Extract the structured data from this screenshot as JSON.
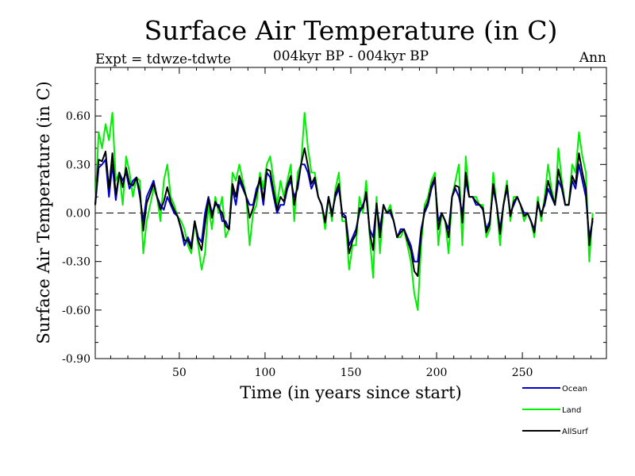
{
  "chart_data": {
    "type": "line",
    "title": "Surface Air Temperature (in C)",
    "subtitle": "004kyr BP - 004kyr BP",
    "expt_label": "Expt = tdwze-tdwte",
    "season_label": "Ann",
    "xlabel": "Time (in years since start)",
    "ylabel": "Surface Air Temperature (in C)",
    "xlim": [
      1,
      299
    ],
    "ylim": [
      -0.9,
      0.9
    ],
    "xticks": [
      50,
      100,
      150,
      200,
      250
    ],
    "xtick_labels": [
      "50",
      "100",
      "150",
      "200",
      "250"
    ],
    "yticks": [
      -0.9,
      -0.6,
      -0.3,
      0.0,
      0.3,
      0.6
    ],
    "ytick_labels": [
      "-0.90",
      "-0.60",
      "-0.30",
      "0.00",
      "0.30",
      "0.60"
    ],
    "zero_line": "dashed",
    "legend_position": "bottom-right, below plot",
    "x_start": 1,
    "x_step": 2,
    "series": [
      {
        "name": "Land",
        "color": "#00ee00",
        "values": [
          0.05,
          0.5,
          0.4,
          0.55,
          0.45,
          0.62,
          0.2,
          0.25,
          0.05,
          0.35,
          0.25,
          0.1,
          0.22,
          0.2,
          -0.25,
          -0.05,
          0.05,
          0.15,
          0.1,
          -0.05,
          0.2,
          0.3,
          0.1,
          0.05,
          -0.02,
          -0.05,
          -0.1,
          -0.2,
          -0.25,
          -0.05,
          -0.2,
          -0.35,
          -0.25,
          0.05,
          -0.1,
          0.1,
          0.0,
          0.1,
          -0.15,
          -0.1,
          0.25,
          0.2,
          0.3,
          0.2,
          0.1,
          -0.2,
          0.0,
          0.05,
          0.25,
          0.15,
          0.3,
          0.35,
          0.2,
          0.05,
          0.2,
          0.1,
          0.2,
          0.3,
          -0.05,
          0.25,
          0.3,
          0.62,
          0.4,
          0.25,
          0.25,
          0.1,
          0.05,
          -0.1,
          0.1,
          -0.05,
          0.15,
          0.25,
          -0.05,
          -0.05,
          -0.35,
          -0.2,
          -0.2,
          0.1,
          0.0,
          0.2,
          -0.15,
          -0.4,
          0.1,
          -0.25,
          0.05,
          0.0,
          0.05,
          -0.05,
          -0.15,
          -0.15,
          -0.1,
          -0.2,
          -0.3,
          -0.5,
          -0.6,
          -0.2,
          0.05,
          0.1,
          0.2,
          0.25,
          -0.2,
          0.0,
          -0.05,
          -0.25,
          0.1,
          0.2,
          0.3,
          -0.2,
          0.35,
          0.1,
          0.1,
          0.1,
          0.05,
          0.05,
          -0.15,
          -0.1,
          0.25,
          0.05,
          -0.2,
          0.05,
          0.2,
          -0.05,
          0.1,
          0.1,
          0.05,
          -0.05,
          0.0,
          -0.05,
          -0.15,
          0.1,
          -0.05,
          0.1,
          0.3,
          0.15,
          0.05,
          0.4,
          0.2,
          0.05,
          0.05,
          0.3,
          0.25,
          0.5,
          0.35,
          0.25,
          -0.3,
          0.0
        ]
      },
      {
        "name": "Ocean",
        "color": "#0000cc",
        "values": [
          0.05,
          0.28,
          0.3,
          0.33,
          0.1,
          0.3,
          0.08,
          0.25,
          0.2,
          0.25,
          0.15,
          0.2,
          0.22,
          0.1,
          -0.05,
          0.1,
          0.15,
          0.2,
          0.1,
          0.05,
          0.02,
          0.1,
          0.05,
          0.0,
          -0.02,
          -0.1,
          -0.2,
          -0.15,
          -0.2,
          -0.05,
          -0.15,
          -0.18,
          0.0,
          0.1,
          0.0,
          0.05,
          0.05,
          -0.05,
          -0.05,
          -0.1,
          0.15,
          0.05,
          0.2,
          0.15,
          0.1,
          0.05,
          0.05,
          0.15,
          0.2,
          0.05,
          0.25,
          0.22,
          0.1,
          0.0,
          0.05,
          0.05,
          0.15,
          0.2,
          0.1,
          0.15,
          0.3,
          0.3,
          0.25,
          0.15,
          0.2,
          0.1,
          0.05,
          -0.05,
          0.1,
          0.0,
          0.1,
          0.15,
          0.0,
          -0.02,
          -0.2,
          -0.15,
          -0.1,
          0.0,
          0.05,
          0.1,
          -0.1,
          -0.15,
          0.05,
          -0.1,
          0.05,
          0.0,
          0.0,
          -0.05,
          -0.15,
          -0.1,
          -0.1,
          -0.15,
          -0.2,
          -0.3,
          -0.3,
          -0.1,
          0.0,
          0.05,
          0.15,
          0.2,
          -0.05,
          0.0,
          -0.05,
          -0.1,
          0.1,
          0.15,
          0.1,
          0.0,
          0.2,
          0.1,
          0.1,
          0.05,
          0.05,
          0.02,
          -0.1,
          -0.05,
          0.15,
          0.05,
          -0.1,
          0.05,
          0.15,
          0.0,
          0.05,
          0.1,
          0.05,
          0.0,
          0.0,
          -0.05,
          -0.1,
          0.05,
          0.0,
          0.05,
          0.15,
          0.1,
          0.05,
          0.2,
          0.15,
          0.05,
          0.05,
          0.2,
          0.15,
          0.3,
          0.2,
          0.1,
          -0.15,
          -0.05
        ]
      },
      {
        "name": "AllSurf",
        "color": "#000000",
        "values": [
          0.05,
          0.33,
          0.32,
          0.38,
          0.15,
          0.37,
          0.11,
          0.25,
          0.16,
          0.28,
          0.18,
          0.17,
          0.22,
          0.13,
          -0.11,
          0.06,
          0.12,
          0.18,
          0.1,
          0.02,
          0.07,
          0.16,
          0.07,
          0.02,
          -0.02,
          -0.09,
          -0.17,
          -0.17,
          -0.22,
          -0.05,
          -0.17,
          -0.23,
          -0.07,
          0.09,
          -0.03,
          0.07,
          0.03,
          0.0,
          -0.08,
          -0.1,
          0.18,
          0.1,
          0.23,
          0.17,
          0.1,
          -0.03,
          0.03,
          0.12,
          0.22,
          0.08,
          0.27,
          0.26,
          0.13,
          0.02,
          0.1,
          0.07,
          0.17,
          0.23,
          0.05,
          0.18,
          0.3,
          0.4,
          0.29,
          0.18,
          0.22,
          0.1,
          0.05,
          -0.06,
          0.1,
          -0.02,
          0.12,
          0.18,
          -0.02,
          -0.03,
          -0.25,
          -0.17,
          -0.13,
          0.03,
          0.03,
          0.13,
          -0.12,
          -0.23,
          0.06,
          -0.15,
          0.05,
          0.0,
          0.02,
          -0.05,
          -0.15,
          -0.12,
          -0.1,
          -0.17,
          -0.23,
          -0.36,
          -0.39,
          -0.13,
          0.02,
          0.07,
          0.17,
          0.22,
          -0.1,
          0.0,
          -0.05,
          -0.15,
          0.1,
          0.17,
          0.16,
          -0.06,
          0.25,
          0.1,
          0.1,
          0.07,
          0.05,
          0.03,
          -0.12,
          -0.07,
          0.18,
          0.05,
          -0.13,
          0.05,
          0.17,
          -0.02,
          0.07,
          0.1,
          0.05,
          -0.02,
          0.0,
          -0.05,
          -0.12,
          0.07,
          -0.02,
          0.07,
          0.2,
          0.12,
          0.05,
          0.27,
          0.17,
          0.05,
          0.05,
          0.23,
          0.18,
          0.37,
          0.25,
          0.15,
          -0.2,
          -0.03
        ]
      }
    ]
  }
}
